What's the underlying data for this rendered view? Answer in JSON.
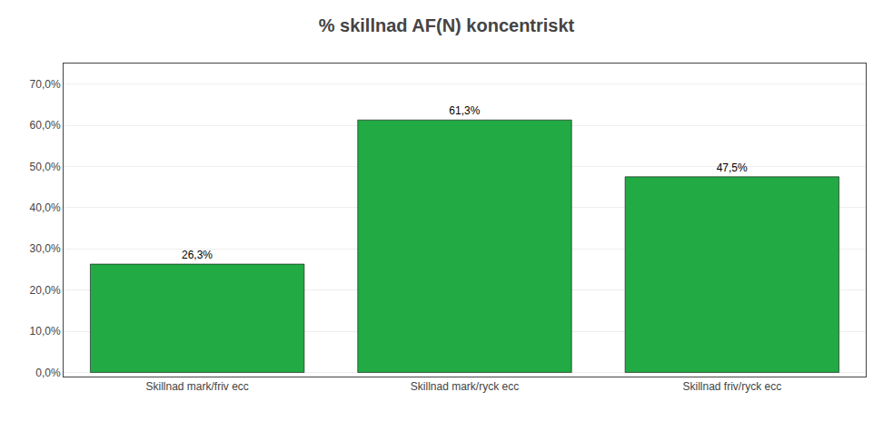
{
  "chart_data": {
    "type": "bar",
    "title": "% skillnad AF(N) koncentriskt",
    "categories": [
      "Skillnad mark/friv ecc",
      "Skillnad mark/ryck ecc",
      "Skillnad friv/ryck ecc"
    ],
    "values": [
      0.263,
      0.613,
      0.475
    ],
    "value_labels": [
      "26,3%",
      "61,3%",
      "47,5%"
    ],
    "data_labels": true,
    "color": "#22AA44",
    "ylim": [
      -0.01,
      0.75
    ],
    "yticks": [
      {
        "value": 0.0,
        "label": "0,0%"
      },
      {
        "value": 0.1,
        "label": "10,0%"
      },
      {
        "value": 0.2,
        "label": "20,0%"
      },
      {
        "value": 0.3,
        "label": "30,0%"
      },
      {
        "value": 0.4,
        "label": "40,0%"
      },
      {
        "value": 0.5,
        "label": "50,0%"
      },
      {
        "value": 0.6,
        "label": "60,0%"
      },
      {
        "value": 0.7,
        "label": "70,0%"
      }
    ],
    "grid": true
  }
}
